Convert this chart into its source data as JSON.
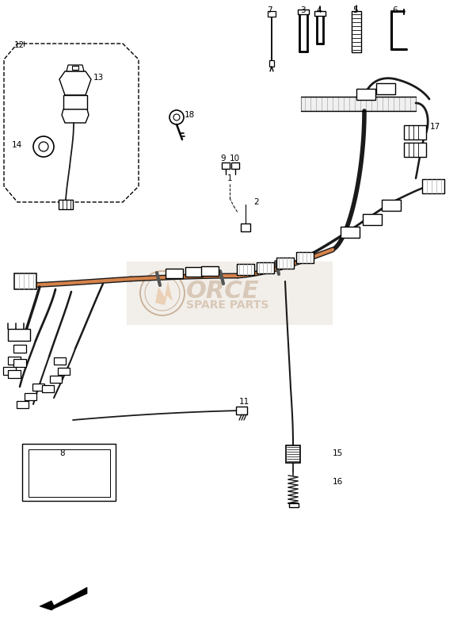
{
  "bg_color": "#ffffff",
  "lc": "#000000",
  "wc": "#1a1a1a",
  "oc": "#d4824a",
  "wm_text_color": "#c8b0a0",
  "wm_circle_color": "#d0b898"
}
